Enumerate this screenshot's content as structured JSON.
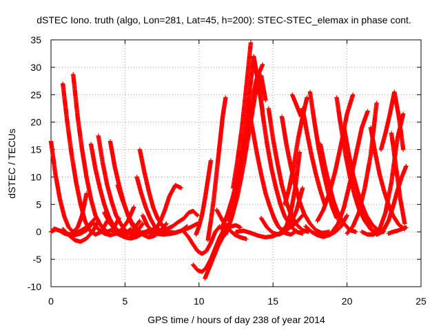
{
  "chart_data": {
    "type": "scatter",
    "title": "dSTEC Iono. truth (algo, Lon=281, Lat=45, h=200): STEC-STEC_elemax in phase cont.",
    "xlabel": "GPS time / hours of day 238 of year 2014",
    "ylabel": "dSTEC  / TECUs",
    "xlim": [
      0,
      25
    ],
    "ylim": [
      -10,
      35
    ],
    "xticks": [
      0,
      5,
      10,
      15,
      20,
      25
    ],
    "yticks": [
      -10,
      -5,
      0,
      5,
      10,
      15,
      20,
      25,
      30,
      35
    ],
    "grid": true,
    "marker": "plus",
    "color": "#ff0000",
    "series": [
      {
        "x": [
          0.0,
          0.3,
          0.6,
          0.9,
          1.2,
          1.5,
          1.8,
          2.1,
          2.4
        ],
        "y": [
          16.5,
          10.5,
          6.0,
          2.8,
          0.8,
          0.0,
          0.8,
          3.0,
          7.0
        ]
      },
      {
        "x": [
          0.0,
          0.3,
          0.6,
          0.9,
          1.2,
          1.6,
          2.0,
          2.5,
          3.0
        ],
        "y": [
          0.0,
          0.5,
          0.2,
          -0.3,
          -0.5,
          -0.3,
          0.2,
          1.0,
          2.5
        ]
      },
      {
        "x": [
          0.2,
          0.5,
          0.8,
          1.2,
          1.6,
          2.0,
          2.4,
          2.8
        ],
        "y": [
          0.6,
          0.3,
          0.0,
          -0.4,
          -0.6,
          -0.3,
          0.3,
          1.5
        ]
      },
      {
        "x": [
          0.8,
          1.1,
          1.4,
          1.7,
          2.0,
          2.3,
          2.6,
          3.0,
          3.4,
          3.8
        ],
        "y": [
          27.0,
          20.0,
          14.0,
          9.0,
          5.0,
          2.0,
          0.3,
          -0.5,
          0.0,
          2.0
        ]
      },
      {
        "x": [
          1.5,
          1.8,
          2.1,
          2.4,
          2.7,
          3.0,
          3.4,
          3.8,
          4.2,
          4.6
        ],
        "y": [
          28.7,
          21.0,
          15.0,
          10.0,
          6.0,
          3.0,
          1.0,
          0.0,
          0.5,
          2.5
        ]
      },
      {
        "x": [
          0.8,
          1.2,
          1.6,
          2.0,
          2.4,
          2.8,
          3.2
        ],
        "y": [
          0.5,
          -0.6,
          -1.5,
          -1.8,
          -1.2,
          0.0,
          2.0
        ]
      },
      {
        "x": [
          2.7,
          3.0,
          3.3,
          3.6,
          3.9,
          4.2,
          4.6,
          5.0,
          5.4
        ],
        "y": [
          16.0,
          11.5,
          8.0,
          5.0,
          2.8,
          1.2,
          0.0,
          -0.3,
          0.5
        ]
      },
      {
        "x": [
          3.2,
          3.5,
          3.8,
          4.1,
          4.4,
          4.7,
          5.0,
          5.4,
          5.8,
          6.2
        ],
        "y": [
          17.5,
          12.5,
          8.5,
          5.5,
          3.0,
          1.5,
          0.3,
          -0.5,
          0.0,
          1.5
        ]
      },
      {
        "x": [
          4.0,
          4.3,
          4.6,
          4.9,
          5.2,
          5.5,
          5.9,
          6.3,
          6.7
        ],
        "y": [
          16.5,
          12.0,
          8.5,
          5.5,
          3.0,
          1.2,
          0.0,
          -0.3,
          0.5
        ]
      },
      {
        "x": [
          2.8,
          3.2,
          3.6,
          4.0,
          4.4,
          4.8,
          5.2,
          5.6
        ],
        "y": [
          1.8,
          0.5,
          -0.3,
          -0.6,
          -0.3,
          0.5,
          2.0,
          4.5
        ]
      },
      {
        "x": [
          3.6,
          4.0,
          4.4,
          4.8,
          5.2,
          5.6,
          6.0
        ],
        "y": [
          3.5,
          1.5,
          0.2,
          -0.4,
          -0.3,
          0.5,
          2.0
        ]
      },
      {
        "x": [
          4.2,
          4.6,
          5.0,
          5.4,
          5.8,
          6.2,
          6.6,
          7.0,
          7.4
        ],
        "y": [
          0.0,
          -0.5,
          -1.0,
          -1.2,
          -0.9,
          -0.3,
          0.3,
          0.5,
          0.3
        ]
      },
      {
        "x": [
          4.5,
          4.8,
          5.1,
          5.4,
          5.8,
          6.2,
          6.6,
          7.0,
          7.4,
          7.8
        ],
        "y": [
          8.5,
          6.0,
          3.8,
          2.0,
          0.5,
          -0.5,
          -1.0,
          -0.7,
          0.2,
          1.5
        ]
      },
      {
        "x": [
          6.0,
          6.3,
          6.6,
          6.9,
          7.2,
          7.6,
          8.0,
          8.4,
          8.8,
          9.2
        ],
        "y": [
          15.0,
          11.0,
          7.5,
          4.5,
          2.5,
          0.8,
          0.0,
          -0.2,
          0.2,
          1.0
        ]
      },
      {
        "x": [
          5.8,
          6.1,
          6.4,
          6.7,
          7.0,
          7.3,
          7.6,
          8.0
        ],
        "y": [
          10.0,
          7.0,
          4.5,
          2.5,
          1.0,
          0.0,
          -0.3,
          0.0
        ]
      },
      {
        "x": [
          6.2,
          6.5,
          6.8,
          7.1,
          7.4,
          7.7,
          8.0,
          8.4,
          8.8
        ],
        "y": [
          3.0,
          1.2,
          0.2,
          0.5,
          2.0,
          4.0,
          6.5,
          8.5,
          8.0
        ]
      },
      {
        "x": [
          5.2,
          5.8,
          6.4,
          7.0,
          7.6,
          8.2,
          8.8,
          9.4,
          9.9
        ],
        "y": [
          -0.2,
          -0.3,
          0.0,
          -0.3,
          -0.5,
          -0.3,
          0.2,
          0.8,
          1.5
        ]
      },
      {
        "x": [
          7.4,
          7.8,
          8.2,
          8.6,
          9.0,
          9.3,
          9.6,
          9.9
        ],
        "y": [
          0.0,
          0.5,
          1.0,
          1.8,
          2.5,
          3.5,
          3.8,
          3.0
        ]
      },
      {
        "x": [
          9.0,
          9.3,
          9.6,
          9.9,
          10.2,
          10.5,
          10.8,
          11.1,
          11.4
        ],
        "y": [
          0.0,
          -1.0,
          -2.3,
          -3.5,
          -4.0,
          -3.5,
          -2.0,
          0.0,
          1.0
        ]
      },
      {
        "x": [
          9.6,
          9.9,
          10.2,
          10.5,
          10.8,
          11.1,
          11.4,
          11.7,
          12.0
        ],
        "y": [
          -6.0,
          -7.0,
          -7.3,
          -6.5,
          -5.0,
          -3.0,
          -1.0,
          0.5,
          1.5
        ]
      },
      {
        "x": [
          10.4,
          10.7,
          11.0,
          11.3,
          11.6,
          11.9,
          12.2,
          12.5,
          12.8
        ],
        "y": [
          -8.5,
          -6.5,
          -4.5,
          -2.5,
          -1.0,
          0.3,
          1.0,
          1.2,
          0.8
        ]
      },
      {
        "x": [
          10.6,
          10.8,
          11.0,
          11.2,
          11.4,
          11.6,
          11.8
        ],
        "y": [
          -1.5,
          2.0,
          6.0,
          11.0,
          16.0,
          21.0,
          24.5
        ]
      },
      {
        "x": [
          9.8,
          10.0,
          10.2,
          10.4,
          10.6,
          10.8
        ],
        "y": [
          -0.5,
          1.0,
          3.0,
          6.0,
          9.5,
          13.0
        ]
      },
      {
        "x": [
          11.2,
          11.6,
          12.0,
          12.4,
          12.8,
          13.2
        ],
        "y": [
          4.0,
          2.0,
          0.5,
          -0.5,
          -1.0,
          -1.3
        ]
      },
      {
        "x": [
          11.8,
          12.2,
          12.6,
          13.0,
          13.4,
          13.8,
          14.2,
          14.5
        ],
        "y": [
          -0.5,
          2.5,
          6.5,
          12.0,
          18.5,
          25.0,
          28.5,
          24.0
        ]
      },
      {
        "x": [
          11.5,
          11.9,
          12.3,
          12.7,
          13.1,
          13.5,
          13.9,
          14.3
        ],
        "y": [
          0.5,
          3.0,
          6.5,
          11.0,
          16.5,
          22.5,
          28.0,
          30.5
        ]
      },
      {
        "x": [
          12.0,
          12.4,
          12.8,
          13.1,
          13.4,
          13.7,
          14.0,
          14.3
        ],
        "y": [
          2.0,
          6.0,
          12.0,
          18.0,
          25.0,
          32.0,
          27.0,
          22.0
        ]
      },
      {
        "x": [
          12.3,
          12.6,
          12.9,
          13.2,
          13.5
        ],
        "y": [
          8.0,
          13.0,
          19.0,
          26.5,
          34.5
        ]
      },
      {
        "x": [
          13.3,
          13.6,
          13.9,
          14.2,
          14.5,
          14.8,
          15.1,
          15.4,
          15.8,
          16.2,
          16.6
        ],
        "y": [
          24.0,
          19.0,
          14.5,
          10.5,
          7.0,
          4.5,
          2.3,
          0.8,
          -0.2,
          -0.5,
          0.2
        ]
      },
      {
        "x": [
          14.0,
          14.3,
          14.6,
          14.9,
          15.2,
          15.5,
          15.8,
          16.2,
          16.6,
          17.0
        ],
        "y": [
          28.0,
          21.5,
          16.0,
          11.5,
          8.0,
          5.0,
          2.8,
          1.0,
          0.0,
          -0.3
        ]
      },
      {
        "x": [
          14.7,
          15.0,
          15.3,
          15.6,
          15.9,
          16.2,
          16.6,
          17.0,
          17.4
        ],
        "y": [
          22.5,
          17.0,
          12.5,
          8.5,
          5.5,
          3.2,
          1.3,
          0.3,
          0.0
        ]
      },
      {
        "x": [
          15.6,
          15.9,
          16.2,
          16.5,
          16.8,
          17.1,
          17.5,
          17.9,
          18.3,
          18.8
        ],
        "y": [
          21.0,
          16.0,
          12.0,
          8.5,
          5.5,
          3.3,
          1.5,
          0.3,
          -0.2,
          0.0
        ]
      },
      {
        "x": [
          12.5,
          13.0,
          13.5,
          14.0,
          14.5,
          15.0,
          15.5,
          16.0,
          16.5,
          17.0
        ],
        "y": [
          0.0,
          0.2,
          -0.2,
          -0.7,
          -1.0,
          -0.8,
          -0.2,
          0.5,
          1.5,
          3.0
        ]
      },
      {
        "x": [
          14.2,
          14.6,
          15.0,
          15.4,
          15.8,
          16.2,
          16.6,
          17.0
        ],
        "y": [
          2.5,
          0.8,
          -0.2,
          -0.5,
          0.0,
          1.5,
          4.0,
          8.0
        ]
      },
      {
        "x": [
          15.0,
          15.3,
          15.6,
          15.9,
          16.2,
          16.5,
          16.8
        ],
        "y": [
          3.0,
          1.2,
          0.3,
          1.0,
          3.5,
          8.0,
          14.5
        ]
      },
      {
        "x": [
          15.8,
          16.1,
          16.4,
          16.7,
          17.0,
          17.3
        ],
        "y": [
          5.0,
          8.0,
          12.0,
          17.0,
          21.0,
          24.5
        ]
      },
      {
        "x": [
          16.3,
          16.6,
          16.9
        ],
        "y": [
          25.0,
          23.0,
          21.0
        ]
      },
      {
        "x": [
          17.2,
          17.6,
          18.0,
          18.4,
          18.8,
          19.2,
          19.6,
          20.0
        ],
        "y": [
          1.0,
          0.0,
          -0.6,
          -0.9,
          -0.6,
          0.0,
          1.0,
          3.0
        ]
      },
      {
        "x": [
          17.5,
          17.8,
          18.1,
          18.4,
          18.7,
          19.0,
          19.3
        ],
        "y": [
          25.5,
          20.0,
          15.0,
          11.0,
          7.5,
          4.5,
          2.5
        ]
      },
      {
        "x": [
          17.0,
          17.3,
          17.6,
          17.9,
          18.2,
          18.5
        ],
        "y": [
          22.5,
          18.0,
          14.0,
          10.5,
          7.5,
          5.0
        ]
      },
      {
        "x": [
          18.2,
          18.5,
          18.8,
          19.1,
          19.4,
          19.8,
          20.2,
          20.6
        ],
        "y": [
          16.0,
          12.0,
          8.5,
          5.5,
          3.3,
          1.5,
          0.3,
          0.0
        ]
      },
      {
        "x": [
          18.0,
          18.4,
          18.8,
          19.2,
          19.6,
          20.0,
          20.4
        ],
        "y": [
          2.0,
          4.0,
          7.0,
          11.0,
          16.0,
          21.5,
          25.0
        ]
      },
      {
        "x": [
          19.3,
          19.6,
          19.9,
          20.2,
          20.5,
          20.8,
          21.2,
          21.6,
          22.0,
          22.4
        ],
        "y": [
          24.5,
          19.0,
          14.0,
          10.0,
          6.8,
          4.2,
          2.0,
          0.5,
          -0.2,
          0.0
        ]
      },
      {
        "x": [
          19.8,
          20.1,
          20.4,
          20.7,
          21.0,
          21.3,
          21.7,
          22.1,
          22.5
        ],
        "y": [
          19.0,
          14.5,
          10.5,
          7.5,
          5.0,
          3.0,
          1.3,
          0.3,
          0.0
        ]
      },
      {
        "x": [
          19.0,
          19.4,
          19.8,
          20.2,
          20.6,
          21.0,
          21.4
        ],
        "y": [
          0.0,
          1.5,
          4.5,
          9.0,
          14.0,
          19.0,
          22.0
        ]
      },
      {
        "x": [
          20.0,
          20.4,
          20.8,
          21.2,
          21.6,
          22.0
        ],
        "y": [
          -0.3,
          1.0,
          3.5,
          8.0,
          14.0,
          23.5
        ]
      },
      {
        "x": [
          21.6,
          21.9,
          22.2,
          22.5,
          22.8,
          23.1,
          23.5,
          23.9
        ],
        "y": [
          19.0,
          14.5,
          10.5,
          7.5,
          5.0,
          3.0,
          1.3,
          0.5
        ]
      },
      {
        "x": [
          21.0,
          21.4,
          21.8,
          22.2,
          22.6,
          23.0,
          23.4,
          23.8
        ],
        "y": [
          0.0,
          -0.5,
          -0.5,
          0.5,
          3.5,
          9.0,
          17.0,
          21.5
        ]
      },
      {
        "x": [
          20.8,
          21.2,
          21.6,
          22.0,
          22.4,
          22.8
        ],
        "y": [
          5.0,
          2.5,
          0.5,
          -0.5,
          0.0,
          2.0
        ]
      },
      {
        "x": [
          22.3,
          22.6,
          22.9,
          23.2,
          23.5,
          23.8
        ],
        "y": [
          15.0,
          18.0,
          21.5,
          25.5,
          21.0,
          15.0
        ]
      },
      {
        "x": [
          22.5,
          22.8,
          23.1,
          23.4,
          23.7,
          24.0
        ],
        "y": [
          0.5,
          2.0,
          4.5,
          7.5,
          10.0,
          12.0
        ]
      },
      {
        "x": [
          23.0,
          23.3,
          23.6,
          23.9
        ],
        "y": [
          18.0,
          12.0,
          6.0,
          1.5
        ]
      },
      {
        "x": [
          22.8,
          23.1,
          23.4,
          23.7,
          24.0
        ],
        "y": [
          -0.3,
          0.0,
          0.2,
          0.5,
          0.8
        ]
      }
    ]
  }
}
